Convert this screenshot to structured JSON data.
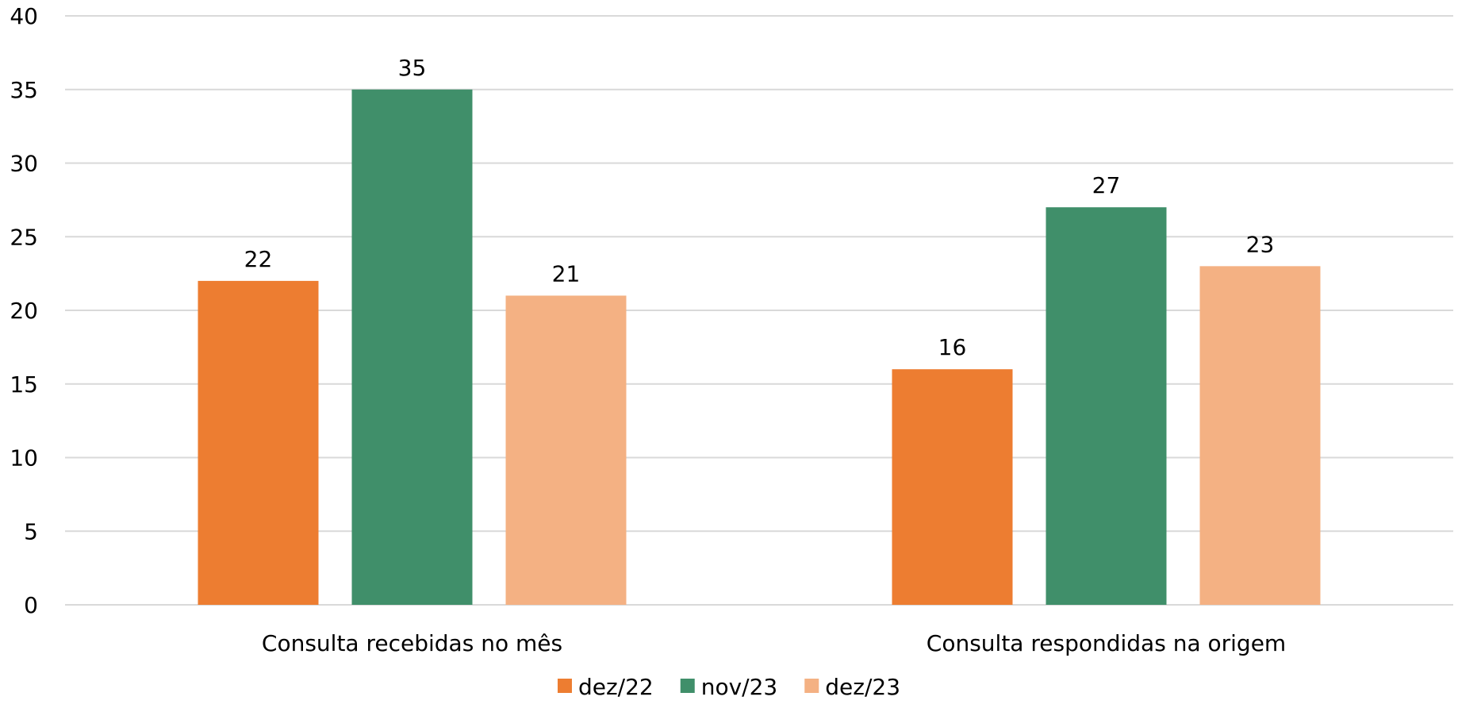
{
  "chart_data": {
    "type": "bar",
    "categories": [
      "Consulta recebidas no mês",
      "Consulta respondidas na origem"
    ],
    "series": [
      {
        "name": "dez/22",
        "values": [
          22,
          16
        ],
        "color": "#ED7D31"
      },
      {
        "name": "nov/23",
        "values": [
          35,
          27
        ],
        "color": "#408F6A"
      },
      {
        "name": "dez/23",
        "values": [
          21,
          23
        ],
        "color": "#F4B183"
      }
    ],
    "yticks": [
      "0",
      "5",
      "10",
      "15",
      "20",
      "25",
      "30",
      "35",
      "40"
    ],
    "ylim": [
      0,
      40
    ],
    "grid": true,
    "legend": "bottom-center",
    "data_labels": true
  }
}
